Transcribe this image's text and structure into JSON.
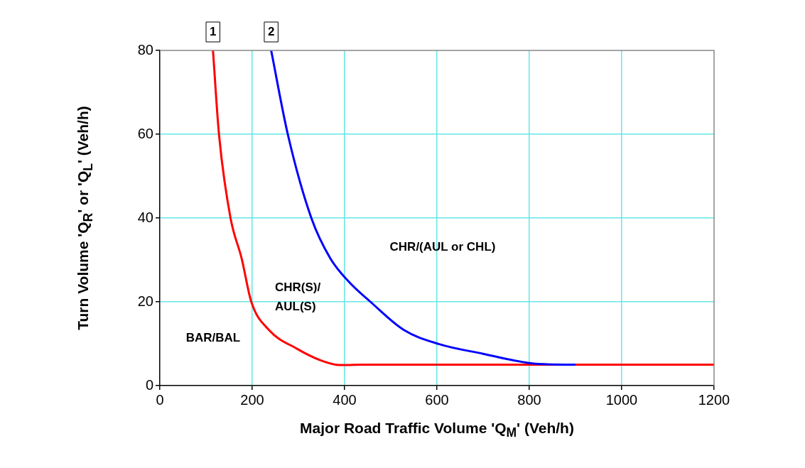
{
  "chart_data": {
    "type": "line",
    "xlabel": "Major Road Traffic Volume 'Q$_{M}$' (Veh/h)",
    "ylabel": "Turn Volume 'Q$_{R}$' or 'Q$_{L}$' (Veh/h)",
    "xlim": [
      0,
      1200
    ],
    "xticks": [
      0,
      200,
      400,
      600,
      800,
      1000,
      1200
    ],
    "ylim": [
      0,
      80
    ],
    "yticks": [
      0,
      20,
      40,
      60,
      80
    ],
    "grid": true,
    "legend": false,
    "marker": "none",
    "line_style": "solid",
    "series": [
      {
        "color": "#ff0000",
        "x": [
          115,
          128,
          153,
          177,
          198,
          236,
          297,
          349,
          390,
          450,
          600,
          800,
          1000,
          1200
        ],
        "values": [
          80,
          60,
          40,
          30.4,
          20,
          13.3,
          8.8,
          6,
          4.9,
          5,
          5,
          5,
          5,
          5
        ]
      },
      {
        "color": "#0000ff",
        "x": [
          241,
          277,
          328,
          369,
          410,
          456,
          528,
          605,
          700,
          800,
          880,
          900
        ],
        "values": [
          80,
          60,
          40,
          30.4,
          24.7,
          20,
          13.3,
          9.9,
          7.6,
          5.4,
          5,
          5
        ]
      }
    ],
    "annotations": [
      {
        "text": "1",
        "x": 115,
        "y": 80
      },
      {
        "text": "2",
        "x": 241,
        "y": 80
      },
      "BAR/BAL",
      "CHR(S)/\nAUL(S)",
      "CHR/(AUL or CHL)"
    ]
  }
}
